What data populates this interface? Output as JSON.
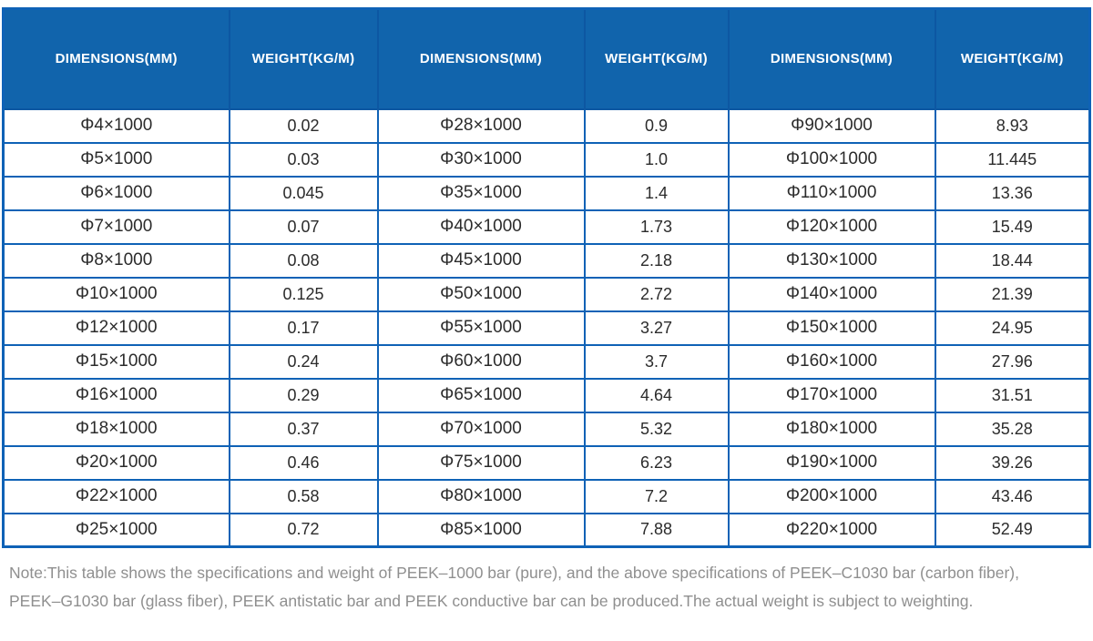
{
  "table": {
    "headers": [
      "DIMENSIONS(MM)",
      "WEIGHT(KG/M)",
      "DIMENSIONS(MM)",
      "WEIGHT(KG/M)",
      "DIMENSIONS(MM)",
      "WEIGHT(KG/M)"
    ],
    "rows": [
      [
        "Φ4×1000",
        "0.02",
        "Φ28×1000",
        "0.9",
        "Φ90×1000",
        "8.93"
      ],
      [
        "Φ5×1000",
        "0.03",
        "Φ30×1000",
        "1.0",
        "Φ100×1000",
        "11.445"
      ],
      [
        "Φ6×1000",
        "0.045",
        "Φ35×1000",
        "1.4",
        "Φ110×1000",
        "13.36"
      ],
      [
        "Φ7×1000",
        "0.07",
        "Φ40×1000",
        "1.73",
        "Φ120×1000",
        "15.49"
      ],
      [
        "Φ8×1000",
        "0.08",
        "Φ45×1000",
        "2.18",
        "Φ130×1000",
        "18.44"
      ],
      [
        "Φ10×1000",
        "0.125",
        "Φ50×1000",
        "2.72",
        "Φ140×1000",
        "21.39"
      ],
      [
        "Φ12×1000",
        "0.17",
        "Φ55×1000",
        "3.27",
        "Φ150×1000",
        "24.95"
      ],
      [
        "Φ15×1000",
        "0.24",
        "Φ60×1000",
        "3.7",
        "Φ160×1000",
        "27.96"
      ],
      [
        "Φ16×1000",
        "0.29",
        "Φ65×1000",
        "4.64",
        "Φ170×1000",
        "31.51"
      ],
      [
        "Φ18×1000",
        "0.37",
        "Φ70×1000",
        "5.32",
        "Φ180×1000",
        "35.28"
      ],
      [
        "Φ20×1000",
        "0.46",
        "Φ75×1000",
        "6.23",
        "Φ190×1000",
        "39.26"
      ],
      [
        "Φ22×1000",
        "0.58",
        "Φ80×1000",
        "7.2",
        "Φ200×1000",
        "43.46"
      ],
      [
        "Φ25×1000",
        "0.72",
        "Φ85×1000",
        "7.88",
        "Φ220×1000",
        "52.49"
      ]
    ]
  },
  "note": {
    "lines": [
      "Note:This table shows the specifications and weight of PEEK–1000 bar (pure), and the above specifications of PEEK–C1030 bar (carbon fiber),",
      "PEEK–G1030 bar (glass fiber), PEEK antistatic bar and PEEK conductive bar can be produced.The actual weight is subject to weighting."
    ]
  },
  "colors": {
    "header_background": "#1164ac",
    "header_text": "#ffffff",
    "table_border": "#0f62b6",
    "cell_text": "#2b2b2b",
    "note_text": "#8f8f8f"
  }
}
